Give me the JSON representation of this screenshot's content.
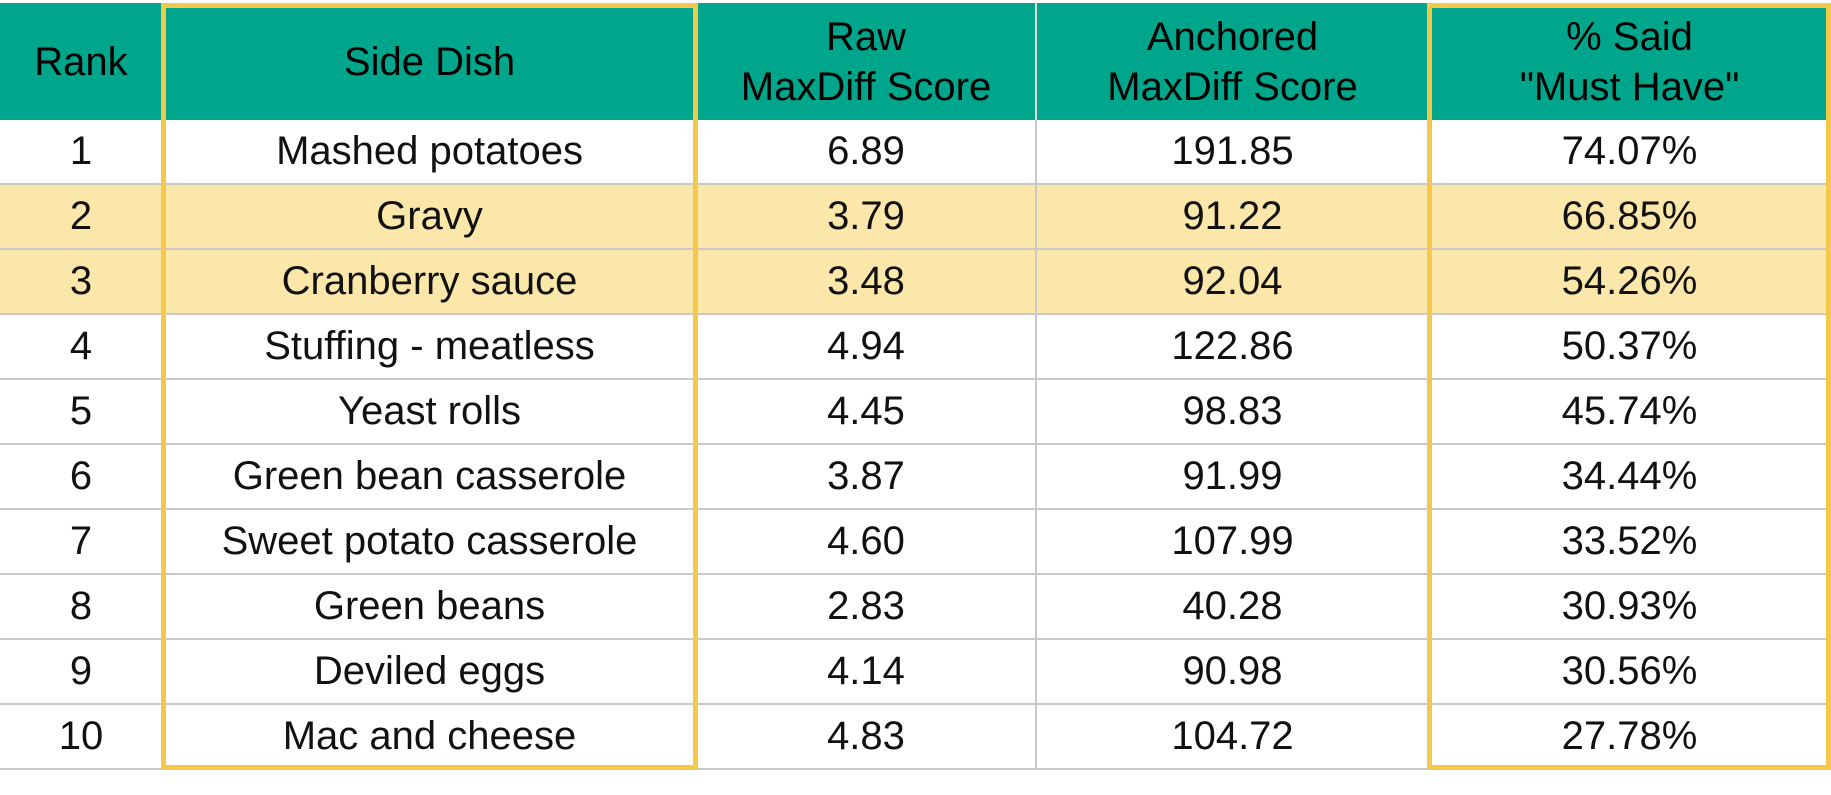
{
  "chart_data": {
    "type": "table",
    "columns": [
      "Rank",
      "Side Dish",
      "Raw\nMaxDiff Score",
      "Anchored\nMaxDiff Score",
      "% Said\n\"Must Have\""
    ],
    "rows": [
      {
        "rank": "1",
        "dish": "Mashed potatoes",
        "raw": "6.89",
        "anchored": "191.85",
        "pct": "74.07%"
      },
      {
        "rank": "2",
        "dish": "Gravy",
        "raw": "3.79",
        "anchored": "91.22",
        "pct": "66.85%"
      },
      {
        "rank": "3",
        "dish": "Cranberry sauce",
        "raw": "3.48",
        "anchored": "92.04",
        "pct": "54.26%"
      },
      {
        "rank": "4",
        "dish": "Stuffing - meatless",
        "raw": "4.94",
        "anchored": "122.86",
        "pct": "50.37%"
      },
      {
        "rank": "5",
        "dish": "Yeast rolls",
        "raw": "4.45",
        "anchored": "98.83",
        "pct": "45.74%"
      },
      {
        "rank": "6",
        "dish": "Green bean casserole",
        "raw": "3.87",
        "anchored": "91.99",
        "pct": "34.44%"
      },
      {
        "rank": "7",
        "dish": "Sweet potato casserole",
        "raw": "4.60",
        "anchored": "107.99",
        "pct": "33.52%"
      },
      {
        "rank": "8",
        "dish": "Green beans",
        "raw": "2.83",
        "anchored": "40.28",
        "pct": "30.93%"
      },
      {
        "rank": "9",
        "dish": "Deviled eggs",
        "raw": "4.14",
        "anchored": "90.98",
        "pct": "30.56%"
      },
      {
        "rank": "10",
        "dish": "Mac and cheese",
        "raw": "4.83",
        "anchored": "104.72",
        "pct": "27.78%"
      }
    ],
    "highlighted_ranks": [
      "2",
      "3"
    ],
    "outlined_columns": [
      "Side Dish",
      "% Said\n\"Must Have\""
    ]
  },
  "colors": {
    "header_bg": "#00a68b",
    "highlight_row_bg": "#fbe7a9",
    "outline": "#f4c84a",
    "grid": "#c9c9c9"
  }
}
